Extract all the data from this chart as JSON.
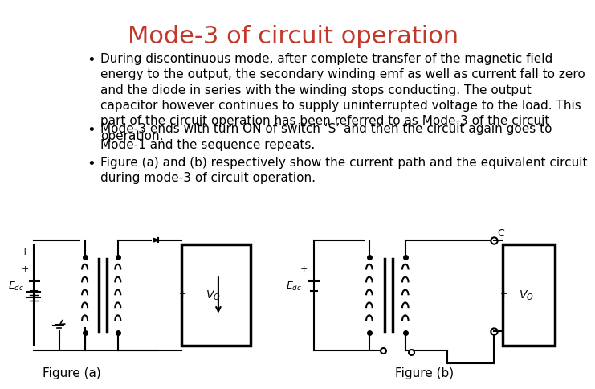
{
  "title": "Mode-3 of circuit operation",
  "title_color": "#c0392b",
  "title_fontsize": 22,
  "bg_color": "#ffffff",
  "bullet_color": "#000000",
  "bullet_fontsize": 11,
  "bullets": [
    "During discontinuous mode, after complete transfer of the magnetic field\nenergy to the output, the secondary winding emf as well as current fall to zero\nand the diode in series with the winding stops conducting. The output\ncapacitor however continues to supply uninterrupted voltage to the load. This\npart of the circuit operation has been referred to as Mode-3 of the circuit\noperation.",
    "Mode-3 ends with turn ON of switch ‘S’ and then the circuit again goes to\nMode-1 and the sequence repeats.",
    "Figure (a) and (b) respectively show the current path and the equivalent circuit\nduring mode-3 of circuit operation."
  ],
  "figure_a_label": "Figure (a)",
  "figure_b_label": "Figure (b)",
  "font_family": "DejaVu Sans"
}
